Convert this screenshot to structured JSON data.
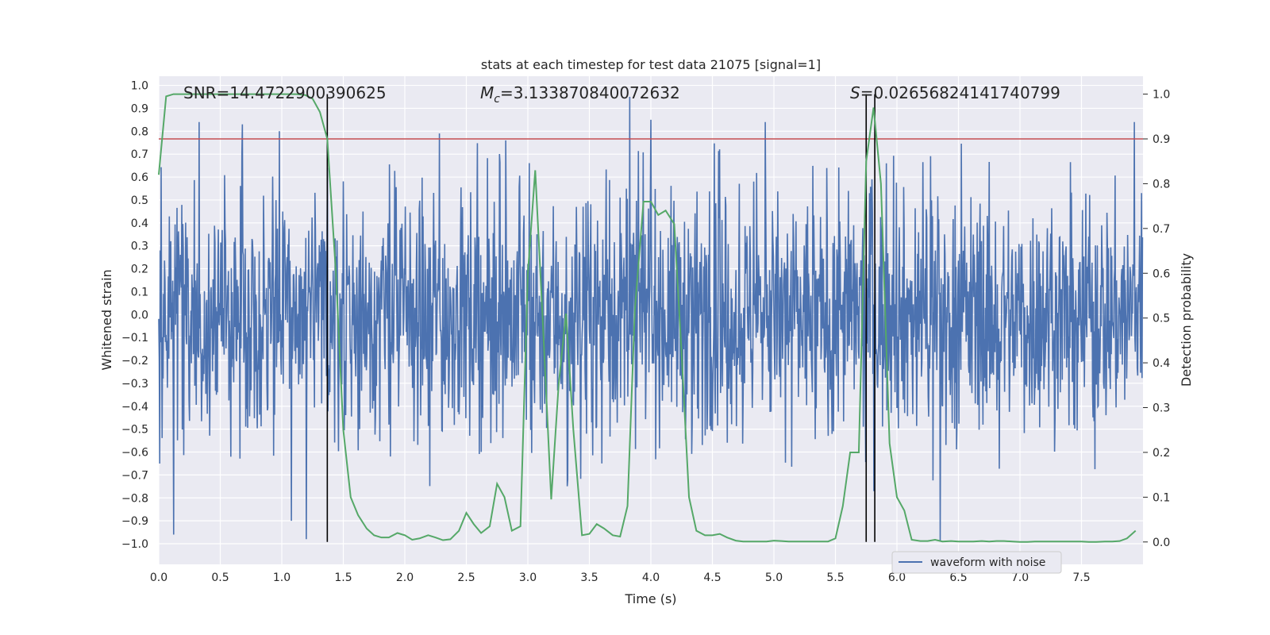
{
  "chart_data": {
    "type": "line",
    "title": "stats at each timestep for test data 21075 [signal=1]",
    "xlabel": "Time (s)",
    "ylabel_left": "Whitened strain",
    "ylabel_right": "Detection probability",
    "xlim": [
      0.0,
      8.0
    ],
    "ylim_left": [
      -1.09,
      1.04
    ],
    "ylim_right": [
      -0.05,
      1.04
    ],
    "x_ticks": [
      "0.0",
      "0.5",
      "1.0",
      "1.5",
      "2.0",
      "2.5",
      "3.0",
      "3.5",
      "4.0",
      "4.5",
      "5.0",
      "5.5",
      "6.0",
      "6.5",
      "7.0",
      "7.5"
    ],
    "y_left_ticks": [
      "−1.0",
      "−0.9",
      "−0.8",
      "−0.7",
      "−0.6",
      "−0.5",
      "−0.4",
      "−0.3",
      "−0.2",
      "−0.1",
      "0.0",
      "0.1",
      "0.2",
      "0.3",
      "0.4",
      "0.5",
      "0.6",
      "0.7",
      "0.8",
      "0.9",
      "1.0"
    ],
    "y_right_ticks": [
      "0.0",
      "0.1",
      "0.2",
      "0.3",
      "0.4",
      "0.5",
      "0.6",
      "0.7",
      "0.8",
      "0.9",
      "1.0"
    ],
    "grid": true,
    "legend_position": "lower-right",
    "annotations": {
      "snr": "SNR=14.4722900390625",
      "mc_symbol": "M",
      "mc_sub": "c",
      "mc_value": "=3.133870840072632",
      "s_symbol": "S",
      "s_value": "=0.02656824141740799"
    },
    "threshold": {
      "value": 0.9,
      "axis": "right",
      "color": "#c44e52"
    },
    "vertical_lines": [
      1.37,
      5.75,
      5.82
    ],
    "series": [
      {
        "name": "waveform with noise",
        "axis": "left",
        "color": "#4c72b0",
        "sampling_rate": 256,
        "description_peaks": [
          {
            "x": 0.33,
            "y": 0.84
          },
          {
            "x": 0.68,
            "y": 0.83
          },
          {
            "x": 0.98,
            "y": 0.8
          },
          {
            "x": 1.2,
            "y": 0.78
          },
          {
            "x": 2.28,
            "y": 0.79
          },
          {
            "x": 2.82,
            "y": 0.76
          },
          {
            "x": 3.83,
            "y": 0.95
          },
          {
            "x": 4.0,
            "y": 0.85
          },
          {
            "x": 4.93,
            "y": 0.84
          },
          {
            "x": 7.93,
            "y": 0.84
          },
          {
            "x": 0.12,
            "y": -0.96
          },
          {
            "x": 1.08,
            "y": -0.9
          },
          {
            "x": 1.2,
            "y": -0.98
          },
          {
            "x": 6.35,
            "y": -0.99
          }
        ]
      },
      {
        "name": "",
        "axis": "right",
        "color": "#55a868",
        "x": [
          0.0,
          0.06,
          0.12,
          0.19,
          0.25,
          0.31,
          0.37,
          0.44,
          0.5,
          0.56,
          0.62,
          0.69,
          0.75,
          0.81,
          0.87,
          0.94,
          1.0,
          1.06,
          1.12,
          1.19,
          1.25,
          1.31,
          1.37,
          1.44,
          1.5,
          1.56,
          1.62,
          1.69,
          1.75,
          1.81,
          1.87,
          1.94,
          2.0,
          2.06,
          2.12,
          2.19,
          2.25,
          2.31,
          2.37,
          2.44,
          2.5,
          2.56,
          2.62,
          2.69,
          2.75,
          2.81,
          2.87,
          2.94,
          3.0,
          3.06,
          3.12,
          3.19,
          3.25,
          3.31,
          3.37,
          3.44,
          3.5,
          3.56,
          3.62,
          3.69,
          3.75,
          3.81,
          3.87,
          3.94,
          4.0,
          4.06,
          4.12,
          4.19,
          4.25,
          4.31,
          4.37,
          4.44,
          4.5,
          4.56,
          4.62,
          4.69,
          4.75,
          4.81,
          4.87,
          4.94,
          5.0,
          5.06,
          5.12,
          5.19,
          5.25,
          5.31,
          5.37,
          5.44,
          5.5,
          5.56,
          5.62,
          5.69,
          5.75,
          5.81,
          5.87,
          5.94,
          6.0,
          6.06,
          6.12,
          6.19,
          6.25,
          6.31,
          6.37,
          6.44,
          6.5,
          6.56,
          6.62,
          6.69,
          6.75,
          6.81,
          6.87,
          6.94,
          7.0,
          7.06,
          7.12,
          7.19,
          7.25,
          7.31,
          7.37,
          7.44,
          7.5,
          7.56,
          7.62,
          7.69,
          7.75,
          7.81,
          7.87,
          7.94
        ],
        "y": [
          0.82,
          0.995,
          1.0,
          1.0,
          1.0,
          1.0,
          1.0,
          1.0,
          1.0,
          1.0,
          1.0,
          1.0,
          1.0,
          1.0,
          1.0,
          1.0,
          1.0,
          1.0,
          1.0,
          0.998,
          0.99,
          0.96,
          0.9,
          0.6,
          0.25,
          0.1,
          0.06,
          0.03,
          0.015,
          0.01,
          0.01,
          0.02,
          0.015,
          0.005,
          0.008,
          0.015,
          0.01,
          0.004,
          0.006,
          0.025,
          0.065,
          0.04,
          0.02,
          0.035,
          0.13,
          0.1,
          0.025,
          0.035,
          0.6,
          0.83,
          0.5,
          0.095,
          0.35,
          0.51,
          0.25,
          0.015,
          0.018,
          0.04,
          0.03,
          0.015,
          0.012,
          0.08,
          0.52,
          0.76,
          0.76,
          0.73,
          0.74,
          0.71,
          0.42,
          0.1,
          0.025,
          0.015,
          0.015,
          0.018,
          0.01,
          0.003,
          0.001,
          0.001,
          0.001,
          0.001,
          0.003,
          0.002,
          0.001,
          0.001,
          0.001,
          0.001,
          0.001,
          0.001,
          0.008,
          0.08,
          0.2,
          0.2,
          0.85,
          0.97,
          0.8,
          0.22,
          0.1,
          0.07,
          0.005,
          0.002,
          0.002,
          0.005,
          0.001,
          0.002,
          0.001,
          0.001,
          0.001,
          0.002,
          0.001,
          0.002,
          0.002,
          0.001,
          0.0,
          0.0,
          0.001,
          0.001,
          0.001,
          0.001,
          0.001,
          0.001,
          0.001,
          0.0,
          0.0,
          0.001,
          0.001,
          0.002,
          0.008,
          0.025
        ]
      }
    ]
  }
}
